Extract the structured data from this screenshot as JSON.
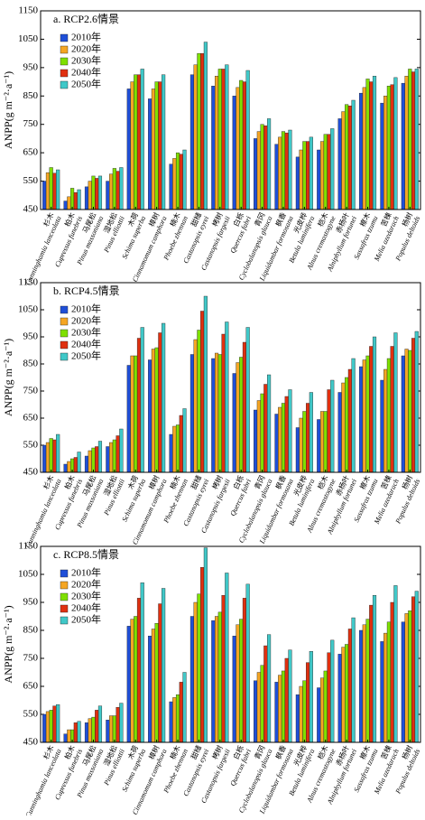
{
  "chart_data": [
    {
      "type": "bar",
      "title": "a. RCP2.6情景",
      "y_label": "ANPP(g m⁻²·a⁻¹)",
      "categories": [
        "杉木",
        "柏木",
        "马尾松",
        "湿地松",
        "木荷",
        "樟树",
        "楠木",
        "甜槠",
        "栲树",
        "白栎",
        "青冈",
        "枫香",
        "光皮桦",
        "桤木",
        "赤杨叶",
        "檫木",
        "苦楝",
        "杨树"
      ],
      "category_latin": [
        "Cunninghamia lanceolata",
        "Cupressus funebris",
        "Pinus massoniana",
        "Pinus elliottii",
        "Schima superba",
        "Cinnamomum camphora",
        "Phoebe zhennan",
        "Castanopsis eyrei",
        "Castanopsis fargesii",
        "Quercus fabri",
        "Cyclobalanopsis glauca",
        "Liquidambar formosana",
        "Betula luminifera",
        "Alnus cremastogyne",
        "Alniphyllum fortunei",
        "Sassafras tzumu",
        "Melia azedarach",
        "Populus deltoids"
      ],
      "ylim": [
        450,
        1150
      ],
      "yticks": [
        450,
        550,
        650,
        750,
        850,
        950,
        1050,
        1150
      ],
      "legend": "upper left",
      "series": [
        {
          "name": "2010年",
          "color": "#1f4fd8",
          "values": [
            550,
            480,
            530,
            550,
            875,
            840,
            610,
            925,
            885,
            850,
            700,
            680,
            635,
            660,
            770,
            860,
            825,
            895
          ]
        },
        {
          "name": "2020年",
          "color": "#f5a623",
          "values": [
            580,
            495,
            550,
            575,
            900,
            875,
            630,
            960,
            920,
            880,
            725,
            705,
            660,
            690,
            795,
            880,
            850,
            920
          ]
        },
        {
          "name": "2030年",
          "color": "#7fe000",
          "values": [
            598,
            525,
            568,
            595,
            925,
            900,
            650,
            1000,
            945,
            905,
            750,
            725,
            690,
            715,
            820,
            910,
            885,
            945
          ]
        },
        {
          "name": "2040年",
          "color": "#e03010",
          "values": [
            578,
            510,
            560,
            585,
            925,
            900,
            645,
            1000,
            945,
            900,
            745,
            720,
            690,
            715,
            815,
            900,
            890,
            935
          ]
        },
        {
          "name": "2050年",
          "color": "#40c8c8",
          "values": [
            590,
            520,
            568,
            598,
            945,
            925,
            660,
            1040,
            960,
            940,
            770,
            730,
            705,
            735,
            835,
            920,
            915,
            945
          ]
        }
      ]
    },
    {
      "type": "bar",
      "title": "b. RCP4.5情景",
      "y_label": "ANPP(g m⁻²·a⁻¹)",
      "categories": [
        "杉木",
        "柏木",
        "马尾松",
        "湿地松",
        "木荷",
        "樟树",
        "楠木",
        "甜槠",
        "栲树",
        "白栎",
        "青冈",
        "枫香",
        "光皮桦",
        "桤木",
        "赤杨叶",
        "檫木",
        "苦楝",
        "杨树"
      ],
      "category_latin": [
        "Cunninghamia lanceolata",
        "Cupressus funebris",
        "Pinus massoniana",
        "Pinus elliottii",
        "Schima superba",
        "Cinnamomum camphora",
        "Phoebe zhennan",
        "Castanopsis eyrei",
        "Castanopsis fargesii",
        "Quercus fabri",
        "Cyclobalanopsis glauca",
        "Liquidambar formosana",
        "Betula luminifera",
        "Alnus cremastogyne",
        "Alniphyllum fortunei",
        "Sassafras tzumu",
        "Melia azedarach",
        "Populus deltoids"
      ],
      "ylim": [
        450,
        1150
      ],
      "yticks": [
        450,
        550,
        650,
        750,
        850,
        950,
        1050,
        1150
      ],
      "legend": "upper left",
      "series": [
        {
          "name": "2010年",
          "color": "#1f4fd8",
          "values": [
            550,
            480,
            510,
            545,
            845,
            865,
            590,
            885,
            870,
            815,
            680,
            665,
            615,
            645,
            745,
            840,
            790,
            880
          ]
        },
        {
          "name": "2020年",
          "color": "#f5a623",
          "values": [
            560,
            490,
            530,
            560,
            880,
            905,
            620,
            940,
            890,
            855,
            715,
            690,
            650,
            675,
            780,
            865,
            830,
            905
          ]
        },
        {
          "name": "2030年",
          "color": "#7fe000",
          "values": [
            575,
            500,
            540,
            570,
            880,
            910,
            625,
            975,
            885,
            875,
            740,
            705,
            675,
            675,
            800,
            880,
            870,
            900
          ]
        },
        {
          "name": "2040年",
          "color": "#e03010",
          "values": [
            570,
            505,
            545,
            585,
            945,
            965,
            660,
            1045,
            960,
            930,
            775,
            730,
            705,
            755,
            830,
            915,
            915,
            945
          ]
        },
        {
          "name": "2050年",
          "color": "#40c8c8",
          "values": [
            590,
            525,
            565,
            610,
            985,
            1000,
            685,
            1100,
            1005,
            985,
            810,
            755,
            745,
            790,
            870,
            950,
            965,
            970
          ]
        }
      ]
    },
    {
      "type": "bar",
      "title": "c. RCP8.5情景",
      "y_label": "ANPP(g m⁻²·a⁻¹)",
      "categories": [
        "杉木",
        "柏木",
        "马尾松",
        "湿地松",
        "木荷",
        "樟树",
        "楠木",
        "甜槠",
        "栲树",
        "白栎",
        "青冈",
        "枫香",
        "光皮桦",
        "桤木",
        "赤杨叶",
        "檫木",
        "苦楝",
        "杨树"
      ],
      "category_latin": [
        "Cunninghamia lanceolata",
        "Cupressus funebris",
        "Pinus massoniana",
        "Pinus elliottii",
        "Schima superba",
        "Cinnamomum camphora",
        "Phoebe zhennan",
        "Castanopsis eyrei",
        "Castanopsis fargesii",
        "Quercus fabri",
        "Cyclobalanopsis glauca",
        "Liquidambar formosana",
        "Betula luminifera",
        "Alnus cremastogyne",
        "Alniphyllum fortunei",
        "Sassafras tzumu",
        "Melia azedarach",
        "Populus deltoids"
      ],
      "ylim": [
        450,
        1150
      ],
      "yticks": [
        450,
        550,
        650,
        750,
        850,
        950,
        1050,
        1150
      ],
      "legend": "upper left",
      "series": [
        {
          "name": "2010年",
          "color": "#1f4fd8",
          "values": [
            550,
            480,
            520,
            530,
            865,
            830,
            595,
            900,
            885,
            830,
            670,
            665,
            620,
            645,
            765,
            850,
            810,
            880
          ]
        },
        {
          "name": "2020年",
          "color": "#f5a623",
          "values": [
            560,
            495,
            535,
            545,
            890,
            855,
            610,
            950,
            900,
            870,
            700,
            690,
            650,
            680,
            790,
            870,
            840,
            910
          ]
        },
        {
          "name": "2030年",
          "color": "#7fe000",
          "values": [
            565,
            495,
            540,
            545,
            900,
            875,
            620,
            980,
            915,
            890,
            725,
            705,
            670,
            705,
            800,
            890,
            880,
            920
          ]
        },
        {
          "name": "2040年",
          "color": "#e03010",
          "values": [
            580,
            520,
            565,
            575,
            965,
            945,
            665,
            1075,
            975,
            965,
            795,
            750,
            735,
            770,
            855,
            940,
            950,
            970
          ]
        },
        {
          "name": "2050年",
          "color": "#40c8c8",
          "values": [
            585,
            525,
            580,
            590,
            1020,
            1000,
            700,
            1145,
            1055,
            1015,
            835,
            780,
            775,
            815,
            895,
            975,
            1010,
            990
          ]
        }
      ]
    }
  ]
}
